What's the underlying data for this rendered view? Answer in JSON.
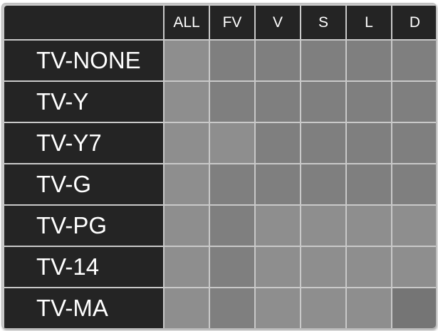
{
  "columns": [
    "ALL",
    "FV",
    "V",
    "S",
    "L",
    "D"
  ],
  "rows": [
    {
      "label": "TV-NONE",
      "cells": [
        "on",
        "off",
        "off",
        "off",
        "off",
        "off"
      ]
    },
    {
      "label": "TV-Y",
      "cells": [
        "on",
        "off",
        "off",
        "off",
        "off",
        "off"
      ]
    },
    {
      "label": "TV-Y7",
      "cells": [
        "on",
        "on",
        "off",
        "off",
        "off",
        "off"
      ]
    },
    {
      "label": "TV-G",
      "cells": [
        "on",
        "off",
        "off",
        "off",
        "off",
        "off"
      ]
    },
    {
      "label": "TV-PG",
      "cells": [
        "on",
        "off",
        "on",
        "on",
        "on",
        "on"
      ]
    },
    {
      "label": "TV-14",
      "cells": [
        "on",
        "off",
        "on",
        "on",
        "on",
        "on"
      ]
    },
    {
      "label": "TV-MA",
      "cells": [
        "on",
        "off",
        "on",
        "on",
        "on",
        "dark"
      ]
    }
  ],
  "colors": {
    "header_bg": "#242424",
    "header_text": "#ffffff",
    "grid_line": "#c9c9c9",
    "cell_off": "#7f7f7f",
    "cell_on": "#8e8e8e",
    "cell_dark": "#757575"
  }
}
